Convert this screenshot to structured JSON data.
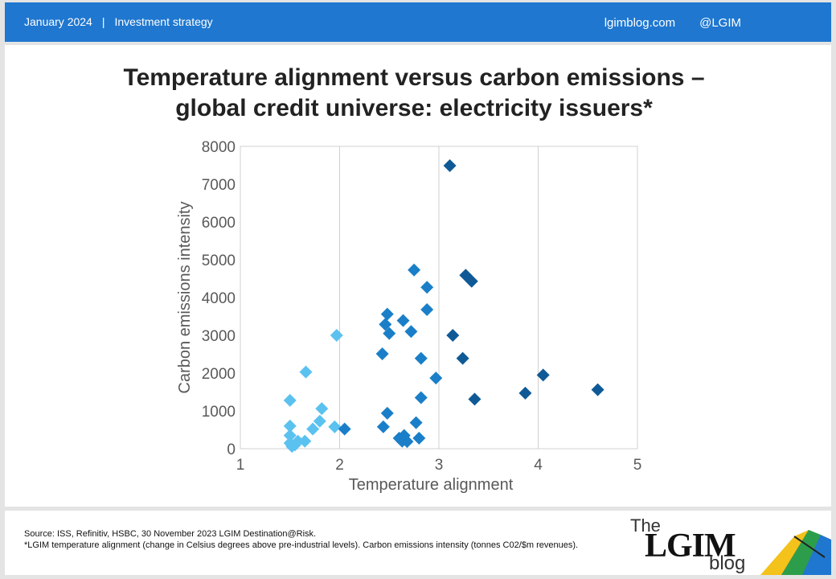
{
  "header": {
    "date": "January 2024",
    "section": "Investment strategy",
    "separator": "|",
    "site": "lgimblog.com",
    "handle": "@LGIM"
  },
  "title_line1": "Temperature alignment versus carbon emissions –",
  "title_line2": "global credit universe: electricity issuers*",
  "footer": {
    "source": "Source: ISS, Refinitiv, HSBC, 30 November 2023 LGIM Destination@Risk.",
    "note": "*LGIM temperature alignment (change in Celsius degrees above pre-industrial levels). Carbon emissions intensity (tonnes C02/$m revenues)."
  },
  "logo": {
    "the": "The",
    "name": "LGIM",
    "blog": "blog"
  },
  "colors": {
    "header_bg": "#1f77d0",
    "point_light": "#5bc2f0",
    "point_mid": "#1a7fc8",
    "point_dark": "#0f5a96",
    "grid": "#d0d0d0"
  },
  "chart_data": {
    "type": "scatter",
    "xlabel": "Temperature alignment",
    "ylabel": "Carbon emissions intensity",
    "xlim": [
      1,
      5
    ],
    "ylim": [
      0,
      8000
    ],
    "xticks": [
      1,
      2,
      3,
      4,
      5
    ],
    "yticks": [
      0,
      1000,
      2000,
      3000,
      4000,
      5000,
      6000,
      7000,
      8000
    ],
    "grid": "vertical",
    "legend": "none",
    "points": [
      [
        1.5,
        1280
      ],
      [
        1.5,
        600
      ],
      [
        1.5,
        350
      ],
      [
        1.5,
        150
      ],
      [
        1.52,
        60
      ],
      [
        1.55,
        100
      ],
      [
        1.58,
        200
      ],
      [
        1.65,
        200
      ],
      [
        1.66,
        2030
      ],
      [
        1.73,
        520
      ],
      [
        1.8,
        730
      ],
      [
        1.82,
        1060
      ],
      [
        1.95,
        580
      ],
      [
        1.97,
        3000
      ],
      [
        2.05,
        520
      ],
      [
        2.43,
        2510
      ],
      [
        2.44,
        580
      ],
      [
        2.46,
        3290
      ],
      [
        2.48,
        3560
      ],
      [
        2.48,
        940
      ],
      [
        2.5,
        3050
      ],
      [
        2.6,
        280
      ],
      [
        2.63,
        200
      ],
      [
        2.64,
        3390
      ],
      [
        2.65,
        350
      ],
      [
        2.68,
        190
      ],
      [
        2.72,
        3100
      ],
      [
        2.75,
        4730
      ],
      [
        2.77,
        690
      ],
      [
        2.8,
        280
      ],
      [
        2.82,
        2390
      ],
      [
        2.82,
        1350
      ],
      [
        2.88,
        4270
      ],
      [
        2.88,
        3680
      ],
      [
        2.97,
        1870
      ],
      [
        3.11,
        7490
      ],
      [
        3.14,
        3000
      ],
      [
        3.24,
        2390
      ],
      [
        3.27,
        4590
      ],
      [
        3.33,
        4430
      ],
      [
        3.36,
        1310
      ],
      [
        3.87,
        1470
      ],
      [
        4.05,
        1950
      ],
      [
        4.6,
        1560
      ]
    ]
  }
}
